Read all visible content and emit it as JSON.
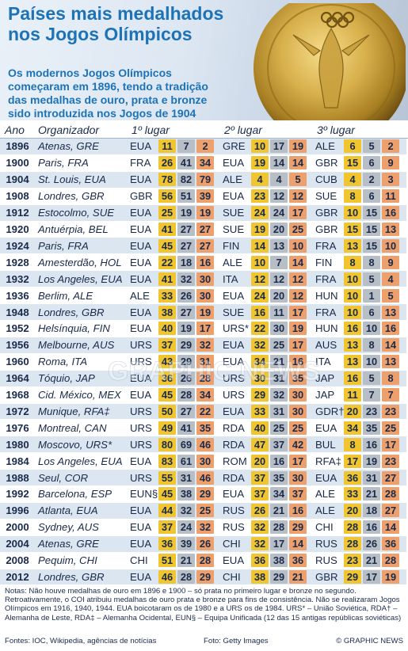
{
  "title": "Países mais medalhados nos Jogos Olímpicos",
  "intro": "Os modernos Jogos Olímpicos começaram em 1896, tendo a tradição das medalhas de ouro, prata e bronze sido introduzida nos Jogos de 1904",
  "photo_icon": "gold-olympic-medal",
  "watermark": "GRAPHIC NEWS",
  "colors": {
    "title": "#1d73b8",
    "gold": "#f0c530",
    "silver": "#b8bec6",
    "bronze": "#eda06b",
    "row_band": "#dbe6f1"
  },
  "chart_data": {
    "type": "table",
    "columns": [
      "Ano",
      "Organizador",
      "1º lugar",
      "2º lugar",
      "3º lugar"
    ],
    "rows": [
      {
        "year": "1896",
        "host": "Atenas, GRE",
        "places": [
          {
            "c": "EUA",
            "m": [
              11,
              7,
              2
            ]
          },
          {
            "c": "GRE",
            "m": [
              10,
              17,
              19
            ]
          },
          {
            "c": "ALE",
            "m": [
              6,
              5,
              2
            ]
          }
        ]
      },
      {
        "year": "1900",
        "host": "Paris, FRA",
        "places": [
          {
            "c": "FRA",
            "m": [
              26,
              41,
              34
            ]
          },
          {
            "c": "EUA",
            "m": [
              19,
              14,
              14
            ]
          },
          {
            "c": "GBR",
            "m": [
              15,
              6,
              9
            ]
          }
        ]
      },
      {
        "year": "1904",
        "host": "St. Louis, EUA",
        "places": [
          {
            "c": "EUA",
            "m": [
              78,
              82,
              79
            ]
          },
          {
            "c": "ALE",
            "m": [
              4,
              4,
              5
            ]
          },
          {
            "c": "CUB",
            "m": [
              4,
              2,
              3
            ]
          }
        ]
      },
      {
        "year": "1908",
        "host": "Londres, GBR",
        "places": [
          {
            "c": "GBR",
            "m": [
              56,
              51,
              39
            ]
          },
          {
            "c": "EUA",
            "m": [
              23,
              12,
              12
            ]
          },
          {
            "c": "SUE",
            "m": [
              8,
              6,
              11
            ]
          }
        ]
      },
      {
        "year": "1912",
        "host": "Estocolmo, SUE",
        "places": [
          {
            "c": "EUA",
            "m": [
              25,
              19,
              19
            ]
          },
          {
            "c": "SUE",
            "m": [
              24,
              24,
              17
            ]
          },
          {
            "c": "GBR",
            "m": [
              10,
              15,
              16
            ]
          }
        ]
      },
      {
        "year": "1920",
        "host": "Antuérpia, BEL",
        "places": [
          {
            "c": "EUA",
            "m": [
              41,
              27,
              27
            ]
          },
          {
            "c": "SUE",
            "m": [
              19,
              20,
              25
            ]
          },
          {
            "c": "GBR",
            "m": [
              15,
              15,
              13
            ]
          }
        ]
      },
      {
        "year": "1924",
        "host": "Paris, FRA",
        "places": [
          {
            "c": "EUA",
            "m": [
              45,
              27,
              27
            ]
          },
          {
            "c": "FIN",
            "m": [
              14,
              13,
              10
            ]
          },
          {
            "c": "FRA",
            "m": [
              13,
              15,
              10
            ]
          }
        ]
      },
      {
        "year": "1928",
        "host": "Amesterdão, HOL",
        "places": [
          {
            "c": "EUA",
            "m": [
              22,
              18,
              16
            ]
          },
          {
            "c": "ALE",
            "m": [
              10,
              7,
              14
            ]
          },
          {
            "c": "FIN",
            "m": [
              8,
              8,
              9
            ]
          }
        ]
      },
      {
        "year": "1932",
        "host": "Los Angeles, EUA",
        "places": [
          {
            "c": "EUA",
            "m": [
              41,
              32,
              30
            ]
          },
          {
            "c": "ITA",
            "m": [
              12,
              12,
              12
            ]
          },
          {
            "c": "FRA",
            "m": [
              10,
              5,
              4
            ]
          }
        ]
      },
      {
        "year": "1936",
        "host": "Berlim, ALE",
        "places": [
          {
            "c": "ALE",
            "m": [
              33,
              26,
              30
            ]
          },
          {
            "c": "EUA",
            "m": [
              24,
              20,
              12
            ]
          },
          {
            "c": "HUN",
            "m": [
              10,
              1,
              5
            ]
          }
        ]
      },
      {
        "year": "1948",
        "host": "Londres, GBR",
        "places": [
          {
            "c": "EUA",
            "m": [
              38,
              27,
              19
            ]
          },
          {
            "c": "SUE",
            "m": [
              16,
              11,
              17
            ]
          },
          {
            "c": "FRA",
            "m": [
              10,
              6,
              13
            ]
          }
        ]
      },
      {
        "year": "1952",
        "host": "Helsínquia, FIN",
        "places": [
          {
            "c": "EUA",
            "m": [
              40,
              19,
              17
            ]
          },
          {
            "c": "URS*",
            "m": [
              22,
              30,
              19
            ]
          },
          {
            "c": "HUN",
            "m": [
              16,
              10,
              16
            ]
          }
        ]
      },
      {
        "year": "1956",
        "host": "Melbourne, AUS",
        "places": [
          {
            "c": "URS",
            "m": [
              37,
              29,
              32
            ]
          },
          {
            "c": "EUA",
            "m": [
              32,
              25,
              17
            ]
          },
          {
            "c": "AUS",
            "m": [
              13,
              8,
              14
            ]
          }
        ]
      },
      {
        "year": "1960",
        "host": "Roma, ITA",
        "places": [
          {
            "c": "URS",
            "m": [
              43,
              29,
              31
            ]
          },
          {
            "c": "EUA",
            "m": [
              34,
              21,
              16
            ]
          },
          {
            "c": "ITA",
            "m": [
              13,
              10,
              13
            ]
          }
        ]
      },
      {
        "year": "1964",
        "host": "Tóquio, JAP",
        "places": [
          {
            "c": "EUA",
            "m": [
              36,
              26,
              28
            ]
          },
          {
            "c": "URS",
            "m": [
              30,
              31,
              35
            ]
          },
          {
            "c": "JAP",
            "m": [
              16,
              5,
              8
            ]
          }
        ]
      },
      {
        "year": "1968",
        "host": "Cid. México, MEX",
        "places": [
          {
            "c": "EUA",
            "m": [
              45,
              28,
              34
            ]
          },
          {
            "c": "URS",
            "m": [
              29,
              32,
              30
            ]
          },
          {
            "c": "JAP",
            "m": [
              11,
              7,
              7
            ]
          }
        ]
      },
      {
        "year": "1972",
        "host": "Munique, RFA‡",
        "places": [
          {
            "c": "URS",
            "m": [
              50,
              27,
              22
            ]
          },
          {
            "c": "EUA",
            "m": [
              33,
              31,
              30
            ]
          },
          {
            "c": "GDR†",
            "m": [
              20,
              23,
              23
            ]
          }
        ]
      },
      {
        "year": "1976",
        "host": "Montreal, CAN",
        "places": [
          {
            "c": "URS",
            "m": [
              49,
              41,
              35
            ]
          },
          {
            "c": "RDA",
            "m": [
              40,
              25,
              25
            ]
          },
          {
            "c": "EUA",
            "m": [
              34,
              35,
              25
            ]
          }
        ]
      },
      {
        "year": "1980",
        "host": "Moscovo, URS*",
        "places": [
          {
            "c": "URS",
            "m": [
              80,
              69,
              46
            ]
          },
          {
            "c": "RDA",
            "m": [
              47,
              37,
              42
            ]
          },
          {
            "c": "BUL",
            "m": [
              8,
              16,
              17
            ]
          }
        ]
      },
      {
        "year": "1984",
        "host": "Los Angeles, EUA",
        "places": [
          {
            "c": "EUA",
            "m": [
              83,
              61,
              30
            ]
          },
          {
            "c": "ROM",
            "m": [
              20,
              16,
              17
            ]
          },
          {
            "c": "RFA‡",
            "m": [
              17,
              19,
              23
            ]
          }
        ]
      },
      {
        "year": "1988",
        "host": "Seul, COR",
        "places": [
          {
            "c": "URS",
            "m": [
              55,
              31,
              46
            ]
          },
          {
            "c": "RDA",
            "m": [
              37,
              35,
              30
            ]
          },
          {
            "c": "EUA",
            "m": [
              36,
              31,
              27
            ]
          }
        ]
      },
      {
        "year": "1992",
        "host": "Barcelona, ESP",
        "places": [
          {
            "c": "EUN§",
            "m": [
              45,
              38,
              29
            ]
          },
          {
            "c": "EUA",
            "m": [
              37,
              34,
              37
            ]
          },
          {
            "c": "ALE",
            "m": [
              33,
              21,
              28
            ]
          }
        ]
      },
      {
        "year": "1996",
        "host": "Atlanta, EUA",
        "places": [
          {
            "c": "EUA",
            "m": [
              44,
              32,
              25
            ]
          },
          {
            "c": "RUS",
            "m": [
              26,
              21,
              16
            ]
          },
          {
            "c": "ALE",
            "m": [
              20,
              18,
              27
            ]
          }
        ]
      },
      {
        "year": "2000",
        "host": "Sydney, AUS",
        "places": [
          {
            "c": "EUA",
            "m": [
              37,
              24,
              32
            ]
          },
          {
            "c": "RUS",
            "m": [
              32,
              28,
              29
            ]
          },
          {
            "c": "CHI",
            "m": [
              28,
              16,
              14
            ]
          }
        ]
      },
      {
        "year": "2004",
        "host": "Atenas, GRE",
        "places": [
          {
            "c": "EUA",
            "m": [
              36,
              39,
              26
            ]
          },
          {
            "c": "CHI",
            "m": [
              32,
              17,
              14
            ]
          },
          {
            "c": "RUS",
            "m": [
              28,
              26,
              36
            ]
          }
        ]
      },
      {
        "year": "2008",
        "host": "Pequim, CHI",
        "places": [
          {
            "c": "CHI",
            "m": [
              51,
              21,
              28
            ]
          },
          {
            "c": "EUA",
            "m": [
              36,
              38,
              36
            ]
          },
          {
            "c": "RUS",
            "m": [
              23,
              21,
              28
            ]
          }
        ]
      },
      {
        "year": "2012",
        "host": "Londres, GBR",
        "places": [
          {
            "c": "EUA",
            "m": [
              46,
              28,
              29
            ]
          },
          {
            "c": "CHI",
            "m": [
              38,
              29,
              21
            ]
          },
          {
            "c": "GBR",
            "m": [
              29,
              17,
              19
            ]
          }
        ]
      }
    ]
  },
  "notes": "Notas: Não houve medalhas de ouro em 1896 e 1900 – só prata no primeiro lugar e bronze no segundo. Retroativamente, o COI atribuiu medalhas de ouro prata e bronze para fins de consistência. Não se realizaram Jogos Olímpicos em 1916, 1940, 1944. EUA boicotaram os de 1980 e a URS os de 1984. URS* – União Soviética, RDA† – Alemanha de Leste, RDA‡ – Alemanha Ocidental, EUN§ – Equipa Unificada (12 das 15 antigas repúblicas soviéticas)",
  "sources": "Fontes: IOC, Wikipedia, agências de notícias",
  "photo_credit": "Foto: Getty Images",
  "brand": "© GRAPHIC NEWS"
}
